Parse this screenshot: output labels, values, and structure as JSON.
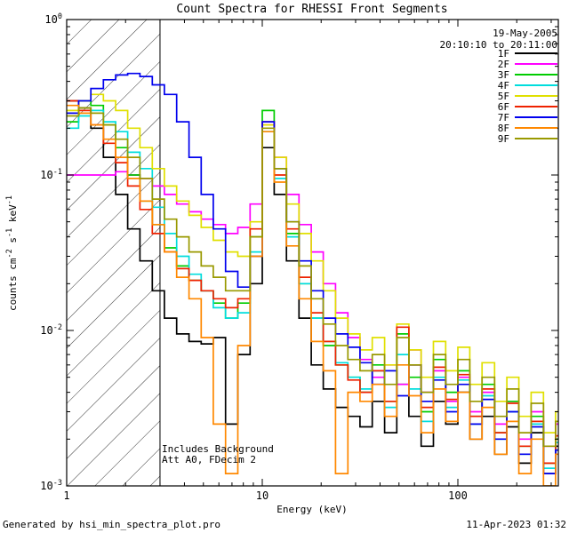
{
  "header": {
    "title": "Count Spectra for RHESSI Front Segments",
    "date": "19-May-2005",
    "time_range": "20:10:10 to 20:11:00"
  },
  "axes": {
    "x_label": "Energy (keV)",
    "y_label_segments": [
      {
        "text": "counts cm"
      },
      {
        "sup": "-2"
      },
      {
        "text": " s"
      },
      {
        "sup": "-1"
      },
      {
        "text": " keV"
      },
      {
        "sup": "-1"
      }
    ],
    "x_ticks": [
      {
        "value": 1,
        "label": "1"
      },
      {
        "value": 10,
        "label": "10"
      },
      {
        "value": 100,
        "label": "100"
      }
    ],
    "y_ticks": [
      {
        "value": 1,
        "label": "10^0"
      },
      {
        "value": 0.1,
        "label": "10^-1"
      },
      {
        "value": 0.01,
        "label": "10^-2"
      },
      {
        "value": 0.001,
        "label": "10^-3"
      }
    ],
    "x_range": [
      1,
      326
    ],
    "y_range": [
      0.001,
      1
    ]
  },
  "hatch": {
    "x_from": 1,
    "x_to": 3
  },
  "annotations": {
    "line1": "Includes Background",
    "line2": "Att A0, FDecim 2"
  },
  "footer": {
    "left": "Generated by hsi_min_spectra_plot.pro",
    "right": "11-Apr-2023 01:32"
  },
  "chart_data": {
    "type": "line",
    "subtype": "step-histogram",
    "title": "Count Spectra for RHESSI Front Segments",
    "xlabel": "Energy (keV)",
    "ylabel": "counts cm^-2 s^-1 keV^-1",
    "x_scale": "log",
    "y_scale": "log",
    "xlim": [
      1,
      326
    ],
    "ylim": [
      0.001,
      1
    ],
    "legend_position": "top-right",
    "grid": false,
    "x": [
      1.0,
      1.15,
      1.33,
      1.54,
      1.78,
      2.05,
      2.37,
      2.74,
      3.16,
      3.65,
      4.22,
      4.87,
      5.62,
      6.49,
      7.5,
      8.66,
      10.0,
      11.5,
      13.3,
      15.4,
      17.8,
      20.5,
      23.7,
      27.4,
      31.6,
      36.5,
      42.2,
      48.7,
      56.2,
      64.9,
      75.0,
      86.6,
      100,
      115,
      133,
      154,
      178,
      205,
      237,
      274,
      316
    ],
    "series": [
      {
        "name": "1F",
        "color": "#000000",
        "values": [
          0.3,
          0.27,
          0.2,
          0.13,
          0.075,
          0.045,
          0.028,
          0.018,
          0.012,
          0.0095,
          0.0085,
          0.0082,
          0.009,
          0.0025,
          0.007,
          0.02,
          0.15,
          0.075,
          0.028,
          0.012,
          0.006,
          0.0042,
          0.0032,
          0.0028,
          0.0024,
          0.0035,
          0.0022,
          0.0045,
          0.0028,
          0.0018,
          0.0035,
          0.0025,
          0.004,
          0.002,
          0.0028,
          0.0016,
          0.0024,
          0.0014,
          0.0022,
          0.0012,
          0.0018
        ]
      },
      {
        "name": "2F",
        "color": "#ff00ff",
        "values": [
          0.1,
          0.1,
          0.1,
          0.1,
          0.105,
          0.1,
          0.095,
          0.085,
          0.075,
          0.065,
          0.058,
          0.052,
          0.048,
          0.042,
          0.046,
          0.065,
          0.21,
          0.13,
          0.075,
          0.048,
          0.032,
          0.02,
          0.013,
          0.009,
          0.0065,
          0.005,
          0.006,
          0.0045,
          0.0075,
          0.004,
          0.0055,
          0.0035,
          0.005,
          0.003,
          0.004,
          0.0025,
          0.0035,
          0.002,
          0.003,
          0.0018,
          0.0025
        ]
      },
      {
        "name": "3F",
        "color": "#00cc00",
        "values": [
          0.22,
          0.3,
          0.28,
          0.21,
          0.15,
          0.1,
          0.068,
          0.048,
          0.034,
          0.026,
          0.021,
          0.018,
          0.015,
          0.012,
          0.015,
          0.04,
          0.26,
          0.11,
          0.042,
          0.02,
          0.012,
          0.008,
          0.006,
          0.005,
          0.004,
          0.006,
          0.0035,
          0.0095,
          0.005,
          0.003,
          0.0065,
          0.004,
          0.0055,
          0.0028,
          0.0045,
          0.0022,
          0.0035,
          0.0018,
          0.0028,
          0.0014,
          0.002
        ]
      },
      {
        "name": "4F",
        "color": "#00dddd",
        "values": [
          0.2,
          0.24,
          0.26,
          0.22,
          0.19,
          0.14,
          0.11,
          0.062,
          0.042,
          0.03,
          0.023,
          0.018,
          0.014,
          0.012,
          0.013,
          0.032,
          0.19,
          0.095,
          0.04,
          0.02,
          0.012,
          0.0085,
          0.0062,
          0.005,
          0.0042,
          0.0055,
          0.0032,
          0.007,
          0.0042,
          0.0026,
          0.005,
          0.0032,
          0.0048,
          0.0025,
          0.0038,
          0.002,
          0.003,
          0.0016,
          0.0025,
          0.0013,
          0.0019
        ]
      },
      {
        "name": "5F",
        "color": "#e0e000",
        "values": [
          0.26,
          0.3,
          0.33,
          0.3,
          0.26,
          0.2,
          0.15,
          0.11,
          0.085,
          0.068,
          0.055,
          0.046,
          0.038,
          0.032,
          0.03,
          0.05,
          0.21,
          0.13,
          0.065,
          0.042,
          0.028,
          0.018,
          0.012,
          0.0095,
          0.0075,
          0.009,
          0.006,
          0.011,
          0.0075,
          0.005,
          0.0085,
          0.0055,
          0.0078,
          0.0045,
          0.0062,
          0.0035,
          0.005,
          0.0028,
          0.004,
          0.0022,
          0.003
        ]
      },
      {
        "name": "6F",
        "color": "#ee2200",
        "values": [
          0.3,
          0.26,
          0.21,
          0.16,
          0.12,
          0.085,
          0.06,
          0.042,
          0.032,
          0.025,
          0.021,
          0.018,
          0.016,
          0.014,
          0.016,
          0.045,
          0.22,
          0.1,
          0.045,
          0.022,
          0.013,
          0.0085,
          0.006,
          0.0048,
          0.004,
          0.0055,
          0.0035,
          0.0105,
          0.006,
          0.0032,
          0.0058,
          0.0036,
          0.0052,
          0.0028,
          0.0042,
          0.0022,
          0.0034,
          0.0018,
          0.0026,
          0.0014,
          0.0021
        ]
      },
      {
        "name": "7F",
        "color": "#0000ee",
        "values": [
          0.25,
          0.3,
          0.36,
          0.41,
          0.44,
          0.45,
          0.43,
          0.38,
          0.33,
          0.22,
          0.13,
          0.075,
          0.045,
          0.024,
          0.019,
          0.03,
          0.22,
          0.11,
          0.05,
          0.028,
          0.018,
          0.012,
          0.0095,
          0.0078,
          0.0062,
          0.0045,
          0.0055,
          0.0038,
          0.006,
          0.0035,
          0.0048,
          0.003,
          0.0045,
          0.0025,
          0.0036,
          0.002,
          0.003,
          0.0016,
          0.0024,
          0.0012,
          0.0017
        ]
      },
      {
        "name": "8F",
        "color": "#ff8800",
        "values": [
          0.28,
          0.25,
          0.21,
          0.17,
          0.13,
          0.095,
          0.068,
          0.048,
          0.032,
          0.022,
          0.016,
          0.009,
          0.0025,
          0.0012,
          0.008,
          0.03,
          0.19,
          0.09,
          0.035,
          0.016,
          0.0085,
          0.0055,
          0.0012,
          0.004,
          0.0035,
          0.0045,
          0.0028,
          0.006,
          0.0038,
          0.0022,
          0.0042,
          0.0026,
          0.004,
          0.002,
          0.0032,
          0.0016,
          0.0026,
          0.0012,
          0.002,
          0.001,
          0.0016
        ]
      },
      {
        "name": "9F",
        "color": "#999900",
        "values": [
          0.24,
          0.27,
          0.25,
          0.21,
          0.17,
          0.13,
          0.095,
          0.07,
          0.052,
          0.04,
          0.032,
          0.026,
          0.022,
          0.018,
          0.018,
          0.04,
          0.2,
          0.11,
          0.05,
          0.026,
          0.016,
          0.011,
          0.008,
          0.0065,
          0.0055,
          0.007,
          0.0045,
          0.009,
          0.006,
          0.004,
          0.007,
          0.0045,
          0.0065,
          0.0035,
          0.005,
          0.0028,
          0.0042,
          0.0022,
          0.0034,
          0.0018,
          0.0026
        ]
      }
    ]
  }
}
